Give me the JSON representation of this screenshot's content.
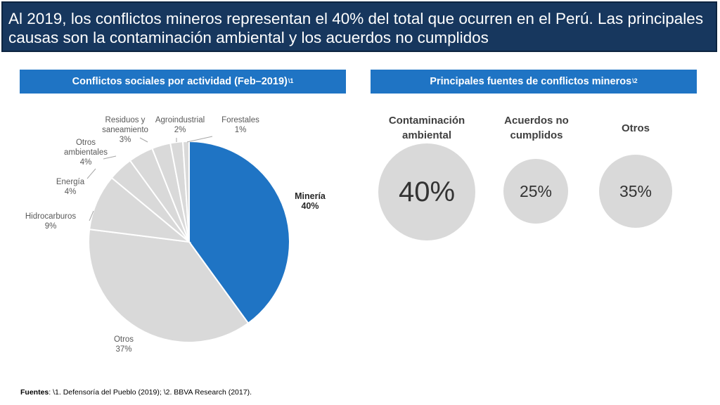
{
  "header": {
    "title": "Al 2019, los conflictos mineros representan el 40% del total que ocurren en el Perú. Las principales causas son la contaminación ambiental y los acuerdos no cumplidos"
  },
  "left_section": {
    "title": "Conflictos sociales por actividad (Feb–2019)",
    "note_ref": "\\1"
  },
  "right_section": {
    "title": "Principales fuentes de conflictos mineros",
    "note_ref": "\\2"
  },
  "chart_data": {
    "type": "pie",
    "title": "Conflictos sociales por actividad (Feb–2019)",
    "slices": [
      {
        "name": "Minería",
        "value": 40,
        "label": "40%",
        "color": "#1f74c4"
      },
      {
        "name": "Otros",
        "value": 37,
        "label": "37%",
        "color": "#d9d9d9"
      },
      {
        "name": "Hidrocarburos",
        "value": 9,
        "label": "9%",
        "color": "#d9d9d9"
      },
      {
        "name": "Energía",
        "value": 4,
        "label": "4%",
        "color": "#d9d9d9"
      },
      {
        "name": "Otros ambientales",
        "value": 4,
        "label": "4%",
        "color": "#d9d9d9"
      },
      {
        "name": "Residuos y saneamiento",
        "value": 3,
        "label": "3%",
        "color": "#d9d9d9"
      },
      {
        "name": "Agroindustrial",
        "value": 2,
        "label": "2%",
        "color": "#d9d9d9"
      },
      {
        "name": "Forestales",
        "value": 1,
        "label": "1%",
        "color": "#d9d9d9"
      }
    ]
  },
  "causes": [
    {
      "name": "Contaminación ambiental",
      "value": "40%"
    },
    {
      "name": "Acuerdos no cumplidos",
      "value": "25%"
    },
    {
      "name": "Otros",
      "value": "35%"
    }
  ],
  "footer": {
    "prefix": "Fuentes",
    "text": ": \\1. Defensoría del Pueblo (2019); \\2. BBVA Research (2017)."
  },
  "colors": {
    "title_bg": "#17375e",
    "section_bg": "#1f74c4",
    "highlight": "#1f74c4",
    "neutral": "#d9d9d9"
  }
}
